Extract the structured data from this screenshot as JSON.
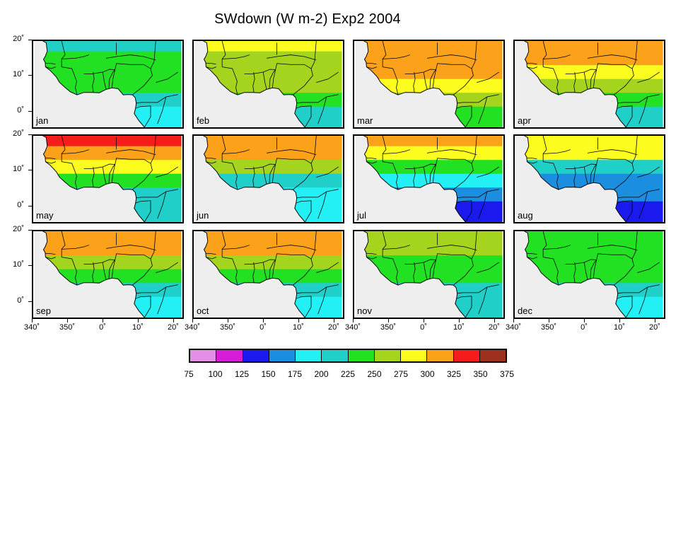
{
  "title": "SWdown (W m-2) Exp2 2004",
  "months": [
    "jan",
    "feb",
    "mar",
    "apr",
    "may",
    "jun",
    "jul",
    "aug",
    "sep",
    "oct",
    "nov",
    "dec"
  ],
  "y_tick_labels": [
    "20˚",
    "10˚",
    "0˚"
  ],
  "x_tick_labels": [
    "340˚",
    "350˚",
    "0˚",
    "10˚",
    "20˚"
  ],
  "colorbar": {
    "levels": [
      "75",
      "100",
      "125",
      "150",
      "175",
      "200",
      "225",
      "250",
      "275",
      "300",
      "325",
      "350",
      "375"
    ],
    "colors": [
      "#e58ee5",
      "#d61cd6",
      "#1a1aee",
      "#1c8ee0",
      "#22f0f4",
      "#20cfc8",
      "#22e022",
      "#a5d41e",
      "#fcfc1e",
      "#fca21a",
      "#f51c1c",
      "#a0301e"
    ]
  },
  "map_colors": {
    "ocean": "#eeeeee",
    "border": "#000000"
  },
  "chart_data": {
    "type": "heatmap",
    "variable": "SWdown (W m-2)",
    "experiment": "Exp2",
    "year": 2004,
    "x_range_deg": [
      340,
      23
    ],
    "y_range_deg": [
      -5,
      20
    ],
    "band_latitudes": [
      19,
      15,
      11,
      7,
      3,
      -1
    ],
    "monthly_zonal_band_levels": {
      "jan": [
        200,
        225,
        225,
        225,
        200,
        175
      ],
      "feb": [
        275,
        250,
        250,
        250,
        225,
        200
      ],
      "mar": [
        300,
        300,
        300,
        275,
        250,
        225
      ],
      "apr": [
        300,
        300,
        275,
        250,
        225,
        200
      ],
      "may": [
        325,
        300,
        275,
        225,
        200,
        200
      ],
      "jun": [
        300,
        300,
        250,
        200,
        175,
        175
      ],
      "jul": [
        300,
        275,
        225,
        175,
        150,
        125
      ],
      "aug": [
        275,
        275,
        200,
        150,
        150,
        125
      ],
      "sep": [
        300,
        300,
        250,
        225,
        200,
        175
      ],
      "oct": [
        300,
        300,
        250,
        225,
        200,
        175
      ],
      "nov": [
        250,
        250,
        225,
        225,
        200,
        200
      ],
      "dec": [
        225,
        225,
        225,
        225,
        200,
        175
      ]
    }
  }
}
